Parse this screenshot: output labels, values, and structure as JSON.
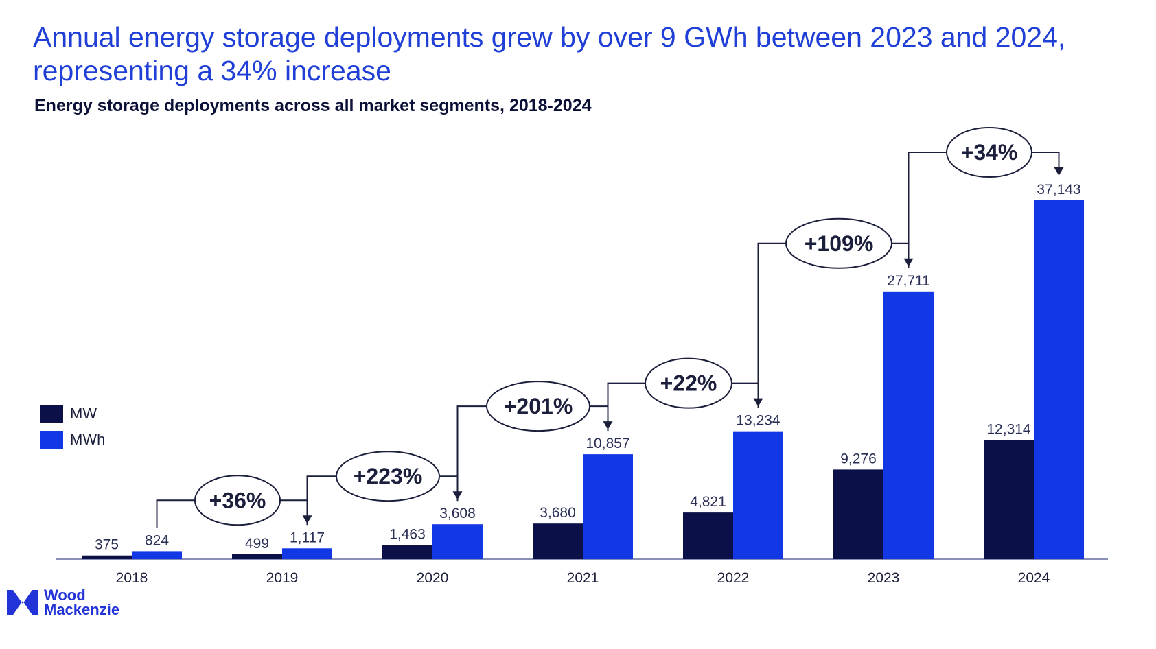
{
  "headline": {
    "line1": "Annual energy storage deployments grew by over 9 GWh between 2023 and 2024,",
    "line2": "representing a 34% increase"
  },
  "colors": {
    "mw": "#0b1148",
    "mwh": "#1238e6",
    "headline": "#1f3fd6",
    "ink": "#1b1f3b"
  },
  "chart_data": {
    "type": "bar",
    "title": "Energy storage deployments across all market segments, 2018-2024",
    "xlabel": "",
    "ylabel": "",
    "ylim": [
      0,
      40000
    ],
    "grid": false,
    "legend_position": "left",
    "categories": [
      "2018",
      "2019",
      "2020",
      "2021",
      "2022",
      "2023",
      "2024"
    ],
    "series": [
      {
        "name": "MW",
        "values": [
          375,
          499,
          1463,
          3680,
          4821,
          9276,
          12314
        ],
        "labels": [
          "375",
          "499",
          "1,463",
          "3,680",
          "4,821",
          "9,276",
          "12,314"
        ]
      },
      {
        "name": "MWh",
        "values": [
          824,
          1117,
          3608,
          10857,
          13234,
          27711,
          37143
        ],
        "labels": [
          "824",
          "1,117",
          "3,608",
          "10,857",
          "13,234",
          "27,711",
          "37,143"
        ]
      }
    ],
    "growth_annotations": [
      {
        "from": "2018",
        "to": "2019",
        "label": "+36%"
      },
      {
        "from": "2019",
        "to": "2020",
        "label": "+223%"
      },
      {
        "from": "2020",
        "to": "2021",
        "label": "+201%"
      },
      {
        "from": "2021",
        "to": "2022",
        "label": "+22%"
      },
      {
        "from": "2022",
        "to": "2023",
        "label": "+109%"
      },
      {
        "from": "2023",
        "to": "2024",
        "label": "+34%"
      }
    ]
  },
  "logo": {
    "line1": "Wood",
    "line2": "Mackenzie"
  }
}
